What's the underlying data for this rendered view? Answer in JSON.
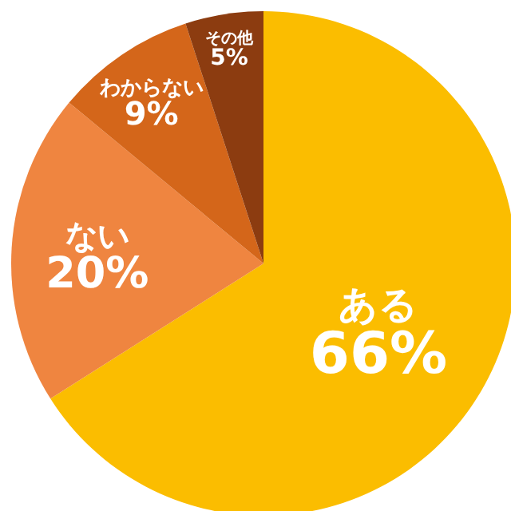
{
  "chart_data": {
    "type": "pie",
    "categories": [
      "ある",
      "ない",
      "わからない",
      "その他"
    ],
    "values": [
      66,
      20,
      9,
      5
    ],
    "colors": [
      "#fbbd00",
      "#ef8540",
      "#d4661a",
      "#8c3c10"
    ],
    "value_labels": [
      "66%",
      "20%",
      "9%",
      "5%"
    ]
  }
}
